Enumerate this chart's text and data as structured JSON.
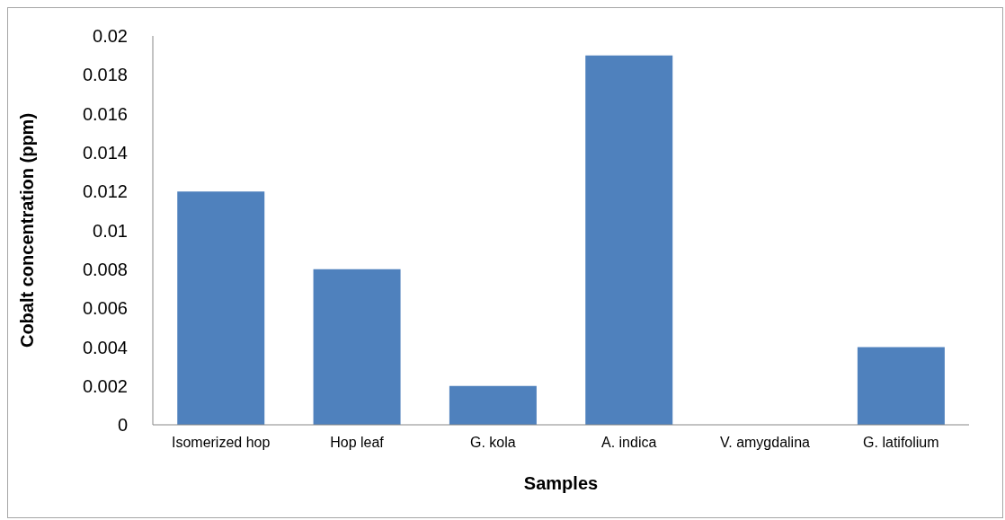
{
  "chart_data": {
    "type": "bar",
    "xlabel": "Samples",
    "ylabel": "Cobalt concentration (ppm)",
    "categories": [
      "Isomerized hop",
      "Hop leaf",
      "G. kola",
      "A. indica",
      "V. amygdalina",
      "G. latifolium"
    ],
    "values": [
      0.012,
      0.008,
      0.002,
      0.019,
      0,
      0.004
    ],
    "color": "#4f81bd",
    "ylim": [
      0,
      0.02
    ],
    "yticks": [
      0,
      0.002,
      0.004,
      0.006,
      0.008,
      0.01,
      0.012,
      0.014,
      0.016,
      0.018,
      0.02
    ],
    "grid": false
  }
}
